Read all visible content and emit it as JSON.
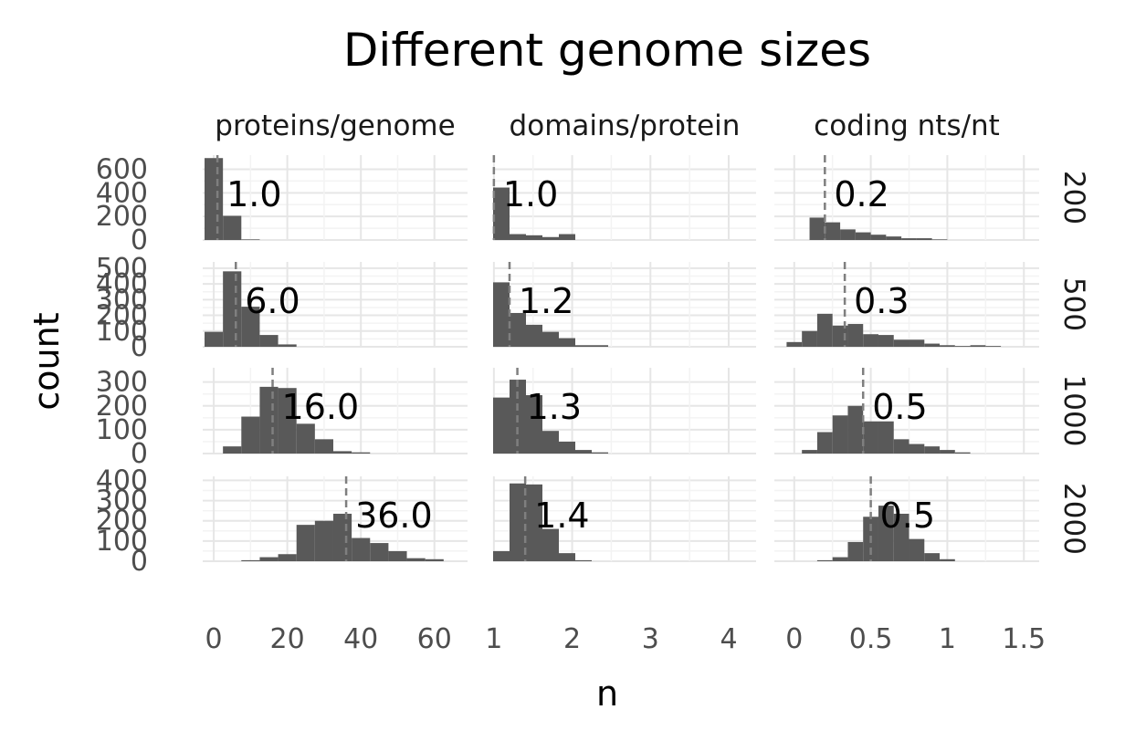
{
  "chart_data": {
    "type": "histogram-facet",
    "title": "Different genome sizes",
    "xlabel": "n",
    "ylabel": "count",
    "col_facets": [
      "proteins/genome",
      "domains/protein",
      "coding nts/nt"
    ],
    "row_facets": [
      "200",
      "500",
      "1000",
      "2000"
    ],
    "x_axes": [
      {
        "range": [
          -3,
          69
        ],
        "ticks": [
          0,
          20,
          40,
          60
        ],
        "tick_labels": [
          "0",
          "20",
          "40",
          "60"
        ],
        "bin_width": 5
      },
      {
        "range": [
          0.99,
          4.35
        ],
        "ticks": [
          1,
          2,
          3,
          4
        ],
        "tick_labels": [
          "1",
          "2",
          "3",
          "4"
        ],
        "bin_width": 0.21
      },
      {
        "range": [
          -0.13,
          1.6
        ],
        "ticks": [
          0,
          0.5,
          1,
          1.5
        ],
        "tick_labels": [
          "0",
          "0.5",
          "1",
          "1.5"
        ],
        "bin_width": 0.1
      }
    ],
    "y_axes": [
      {
        "range": [
          0,
          720
        ],
        "ticks": [
          0,
          200,
          400,
          600
        ],
        "tick_labels": [
          "0",
          "200",
          "400",
          "600"
        ]
      },
      {
        "range": [
          0,
          540
        ],
        "ticks": [
          0,
          100,
          200,
          300,
          400,
          500
        ],
        "tick_labels": [
          "0",
          "100",
          "200",
          "300",
          "400",
          "500"
        ]
      },
      {
        "range": [
          0,
          360
        ],
        "ticks": [
          0,
          100,
          200,
          300
        ],
        "tick_labels": [
          "0",
          "100",
          "200",
          "300"
        ]
      },
      {
        "range": [
          0,
          420
        ],
        "ticks": [
          0,
          100,
          200,
          300,
          400
        ],
        "tick_labels": [
          "0",
          "100",
          "200",
          "300",
          "400"
        ]
      }
    ],
    "panels": [
      {
        "row": 0,
        "col": 0,
        "bin_start": -2.5,
        "counts": [
          695,
          205,
          5
        ],
        "median": 1.0,
        "label": "1.0"
      },
      {
        "row": 0,
        "col": 1,
        "bin_start": 0.99,
        "counts": [
          445,
          50,
          40,
          25,
          50
        ],
        "median": 1.0,
        "label": "1.0"
      },
      {
        "row": 0,
        "col": 2,
        "bin_start": 0.1,
        "counts": [
          190,
          150,
          90,
          65,
          45,
          30,
          15,
          15,
          5
        ],
        "median": 0.2,
        "label": "0.2"
      },
      {
        "row": 1,
        "col": 0,
        "bin_start": -2.5,
        "counts": [
          95,
          480,
          255,
          75,
          15
        ],
        "median": 6.0,
        "label": "6.0"
      },
      {
        "row": 1,
        "col": 1,
        "bin_start": 0.99,
        "counts": [
          410,
          215,
          140,
          95,
          55,
          10,
          10
        ],
        "median": 1.2,
        "label": "1.2"
      },
      {
        "row": 1,
        "col": 2,
        "bin_start": -0.05,
        "counts": [
          30,
          100,
          210,
          135,
          145,
          80,
          75,
          45,
          45,
          20,
          10,
          5,
          10,
          5
        ],
        "median": 0.33,
        "label": "0.3"
      },
      {
        "row": 2,
        "col": 0,
        "bin_start": 2.5,
        "counts": [
          30,
          155,
          280,
          275,
          125,
          60,
          10,
          5
        ],
        "median": 16.0,
        "label": "16.0"
      },
      {
        "row": 2,
        "col": 1,
        "bin_start": 0.99,
        "counts": [
          235,
          310,
          245,
          95,
          50,
          15,
          5
        ],
        "median": 1.3,
        "label": "1.3"
      },
      {
        "row": 2,
        "col": 2,
        "bin_start": 0.05,
        "counts": [
          15,
          90,
          160,
          200,
          135,
          135,
          60,
          40,
          30,
          15,
          5
        ],
        "median": 0.45,
        "label": "0.5"
      },
      {
        "row": 3,
        "col": 0,
        "bin_start": 7.5,
        "counts": [
          5,
          20,
          35,
          180,
          200,
          235,
          115,
          90,
          50,
          15,
          10
        ],
        "median": 36.0,
        "label": "36.0"
      },
      {
        "row": 3,
        "col": 1,
        "bin_start": 0.99,
        "counts": [
          50,
          385,
          380,
          160,
          40,
          5
        ],
        "median": 1.4,
        "label": "1.4"
      },
      {
        "row": 3,
        "col": 2,
        "bin_start": 0.15,
        "counts": [
          5,
          20,
          95,
          220,
          275,
          235,
          110,
          40,
          10
        ],
        "median": 0.5,
        "label": "0.5"
      }
    ],
    "grid": true,
    "bar_color": "#595959",
    "median_line_color": "#7f7f7f"
  }
}
